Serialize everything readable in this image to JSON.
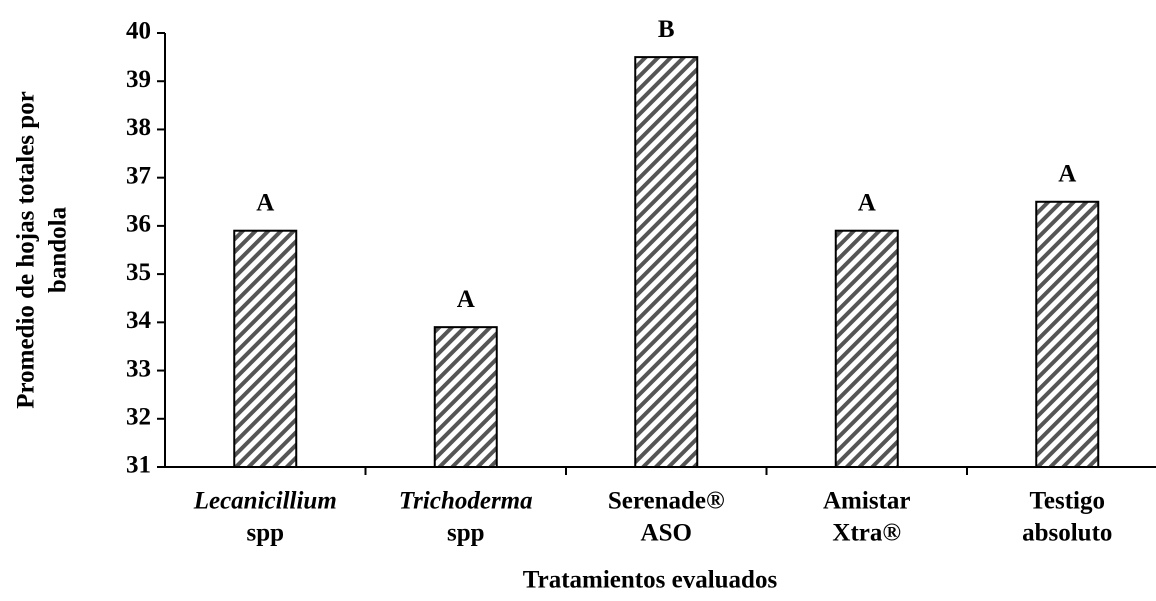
{
  "chart_data": {
    "type": "bar",
    "categories": [
      [
        "Lecanicillium",
        "spp"
      ],
      [
        "Trichoderma",
        "spp"
      ],
      [
        "Serenade®",
        "ASO"
      ],
      [
        "Amistar",
        "Xtra®"
      ],
      [
        "Testigo",
        "absoluto"
      ]
    ],
    "category_italic_first_line": [
      true,
      true,
      false,
      false,
      false
    ],
    "values": [
      35.9,
      33.9,
      39.5,
      35.9,
      36.5
    ],
    "annotations": [
      "A",
      "A",
      "B",
      "A",
      "A"
    ],
    "ylabel": [
      "Promedio de hojas totales por",
      "bandola"
    ],
    "xlabel": "Tratamientos evaluados",
    "color": "#555555",
    "ylim": [
      31,
      40
    ],
    "yticks": [
      31,
      32,
      33,
      34,
      35,
      36,
      37,
      38,
      39,
      40
    ]
  }
}
